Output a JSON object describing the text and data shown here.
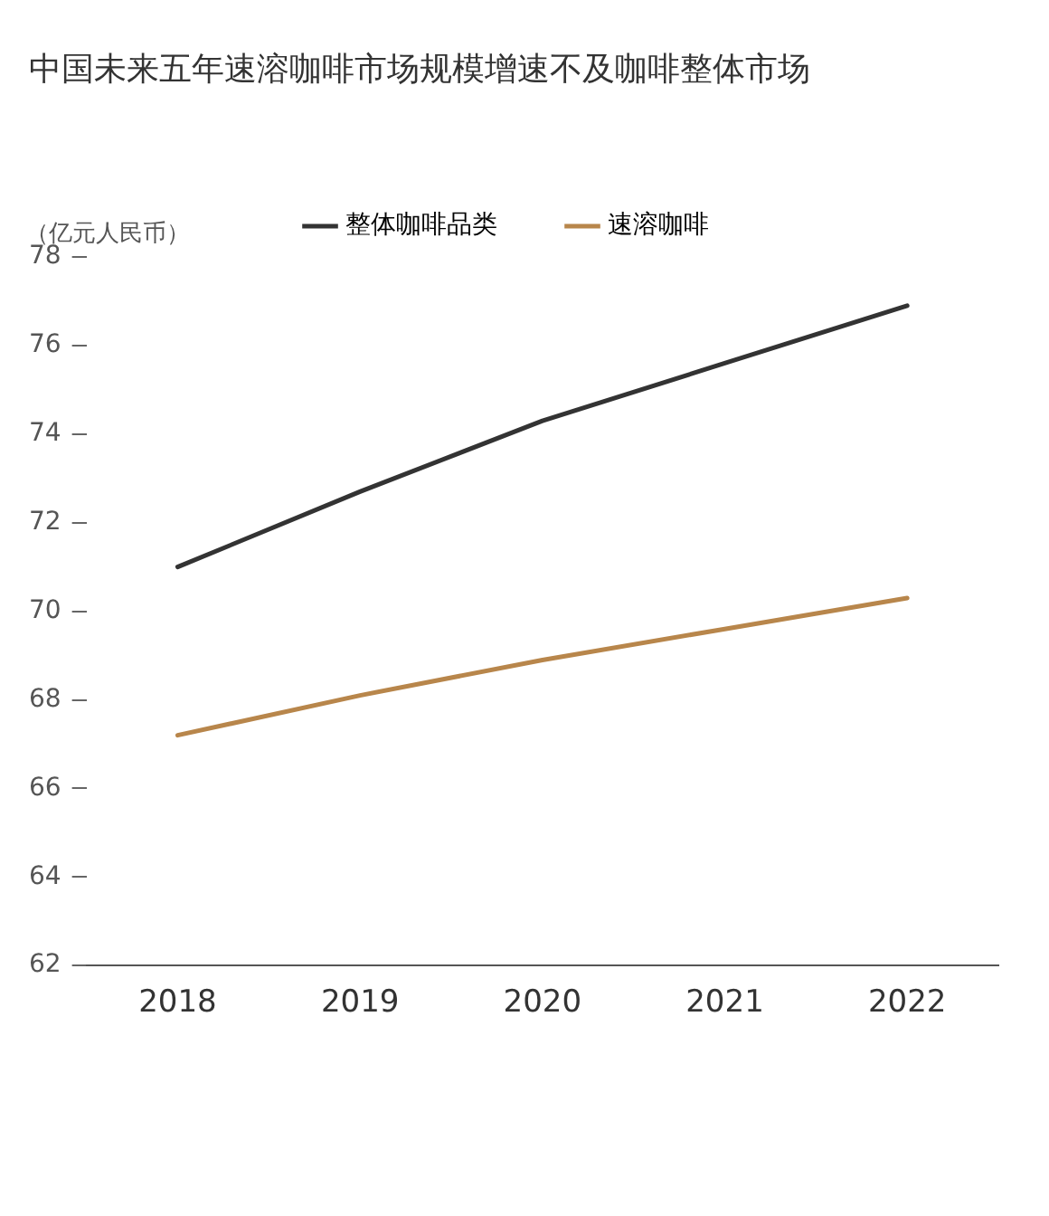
{
  "chart_data": {
    "type": "line",
    "title": "中国未来五年速溶咖啡市场规模增速不及咖啡整体市场",
    "ylabel": "（亿元人民币）",
    "categories": [
      "2018",
      "2019",
      "2020",
      "2021",
      "2022"
    ],
    "series": [
      {
        "name": "整体咖啡品类",
        "color": "#333333",
        "values": [
          71.0,
          72.7,
          74.3,
          75.6,
          76.9
        ]
      },
      {
        "name": "速溶咖啡",
        "color": "#b8864b",
        "values": [
          67.2,
          68.1,
          68.9,
          69.6,
          70.3
        ]
      }
    ],
    "ylim": [
      62,
      78
    ],
    "yticks": [
      62,
      64,
      66,
      68,
      70,
      72,
      74,
      76,
      78
    ],
    "grid": false,
    "legend": "top",
    "marker": "none",
    "line_style": "solid"
  }
}
